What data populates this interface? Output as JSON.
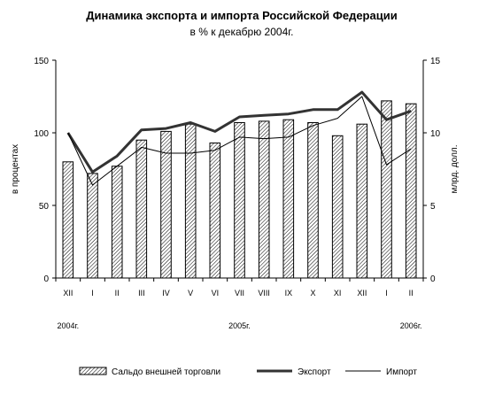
{
  "chart_data": {
    "type": "bar+line",
    "title": "Динамика экспорта и импорта Российской Федерации",
    "subtitle": "в % к декабрю 2004г.",
    "ylabel_left": "в процентах",
    "ylabel_right": "млрд. долл.",
    "ylim_left": [
      0,
      150
    ],
    "ylim_right": [
      0,
      15
    ],
    "yticks_left": [
      "0",
      "50",
      "100",
      "150"
    ],
    "yticks_right": [
      "0",
      "5",
      "10",
      "15"
    ],
    "categories": [
      "XII",
      "I",
      "II",
      "III",
      "IV",
      "V",
      "VI",
      "VII",
      "VIII",
      "IX",
      "X",
      "XI",
      "XII",
      "I",
      "II"
    ],
    "year_labels": [
      {
        "label": "2004г.",
        "index": 0
      },
      {
        "label": "2005г.",
        "index": 7
      },
      {
        "label": "2006г.",
        "index": 14
      }
    ],
    "series": [
      {
        "name": "Сальдо внешней торговли",
        "kind": "bar",
        "axis": "right",
        "values": [
          8.0,
          7.2,
          7.7,
          9.5,
          10.1,
          10.6,
          9.3,
          10.7,
          10.8,
          10.9,
          10.7,
          9.8,
          10.6,
          12.2,
          12.0
        ]
      },
      {
        "name": "Экспорт",
        "kind": "line",
        "axis": "left",
        "values": [
          100,
          73,
          84,
          102,
          103,
          107,
          101,
          111,
          112,
          113,
          116,
          116,
          128,
          109,
          115
        ]
      },
      {
        "name": "Импорт",
        "kind": "line",
        "axis": "left",
        "values": [
          100,
          64,
          77,
          90,
          86,
          86,
          88,
          97,
          96,
          97,
          105,
          110,
          125,
          78,
          89
        ]
      }
    ],
    "legend_position": "bottom",
    "grid": false,
    "colors": {
      "bar_stroke": "#000000",
      "bar_hatch": "#000000",
      "export_line": "#333333",
      "import_line": "#000000"
    }
  }
}
